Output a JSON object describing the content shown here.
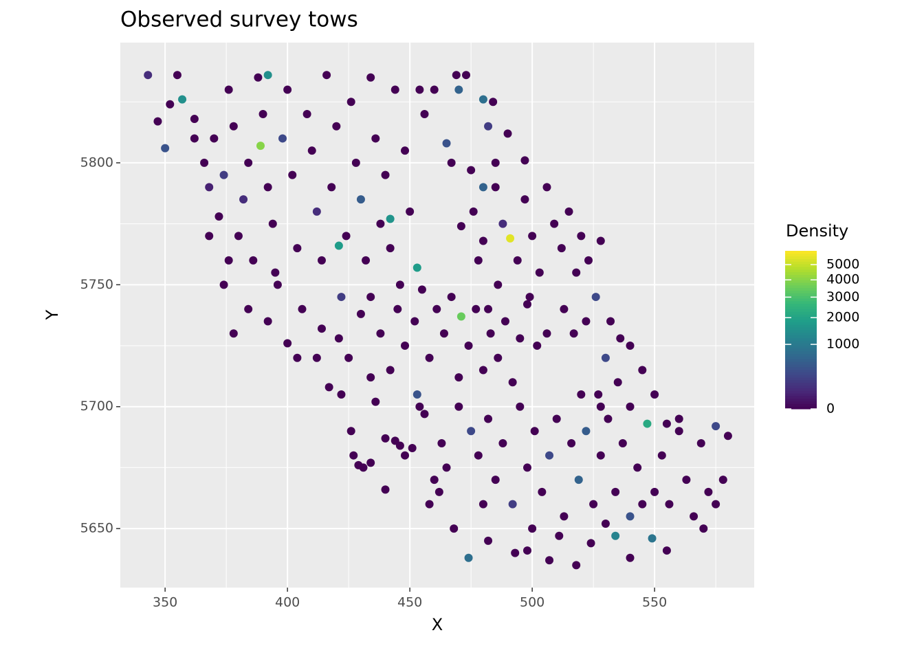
{
  "chart_data": {
    "type": "scatter",
    "title": "Observed survey tows",
    "x_label": "X",
    "y_label": "Y",
    "color_title": "Density",
    "color_scale": "sqrt",
    "color_lim": [
      0,
      6000
    ],
    "color_ticks": [
      0,
      1000,
      2000,
      3000,
      4000,
      5000
    ],
    "xlim": [
      331.7,
      590.7
    ],
    "ylim": [
      5625.8,
      5849.3
    ],
    "xticks": [
      350,
      400,
      450,
      500,
      550
    ],
    "yticks": [
      5650,
      5700,
      5750,
      5800
    ],
    "x_minor_grid": [
      375,
      425,
      475,
      525,
      575
    ],
    "y_minor_grid": [
      5675,
      5725,
      5775,
      5825
    ],
    "grid": true,
    "points": [
      {
        "x": 343,
        "y": 5836,
        "density": 100
      },
      {
        "x": 347,
        "y": 5817,
        "density": 0
      },
      {
        "x": 350,
        "y": 5806,
        "density": 400
      },
      {
        "x": 352,
        "y": 5824,
        "density": 0
      },
      {
        "x": 355,
        "y": 5836,
        "density": 0
      },
      {
        "x": 357,
        "y": 5826,
        "density": 1500
      },
      {
        "x": 362,
        "y": 5818,
        "density": 0
      },
      {
        "x": 366,
        "y": 5800,
        "density": 0
      },
      {
        "x": 368,
        "y": 5790,
        "density": 50
      },
      {
        "x": 370,
        "y": 5810,
        "density": 0
      },
      {
        "x": 372,
        "y": 5778,
        "density": 0
      },
      {
        "x": 374,
        "y": 5795,
        "density": 200
      },
      {
        "x": 376,
        "y": 5830,
        "density": 0
      },
      {
        "x": 378,
        "y": 5815,
        "density": 0
      },
      {
        "x": 380,
        "y": 5770,
        "density": 0
      },
      {
        "x": 382,
        "y": 5785,
        "density": 100
      },
      {
        "x": 384,
        "y": 5800,
        "density": 0
      },
      {
        "x": 386,
        "y": 5760,
        "density": 0
      },
      {
        "x": 388,
        "y": 5835,
        "density": 0
      },
      {
        "x": 392,
        "y": 5836,
        "density": 1500
      },
      {
        "x": 389,
        "y": 5807,
        "density": 4000
      },
      {
        "x": 390,
        "y": 5820,
        "density": 0
      },
      {
        "x": 392,
        "y": 5790,
        "density": 0
      },
      {
        "x": 394,
        "y": 5775,
        "density": 0
      },
      {
        "x": 396,
        "y": 5750,
        "density": 0
      },
      {
        "x": 398,
        "y": 5810,
        "density": 300
      },
      {
        "x": 400,
        "y": 5830,
        "density": 0
      },
      {
        "x": 402,
        "y": 5795,
        "density": 0
      },
      {
        "x": 404,
        "y": 5765,
        "density": 0
      },
      {
        "x": 406,
        "y": 5740,
        "density": 0
      },
      {
        "x": 408,
        "y": 5820,
        "density": 0
      },
      {
        "x": 410,
        "y": 5805,
        "density": 0
      },
      {
        "x": 412,
        "y": 5780,
        "density": 100
      },
      {
        "x": 414,
        "y": 5760,
        "density": 0
      },
      {
        "x": 416,
        "y": 5836,
        "density": 0
      },
      {
        "x": 418,
        "y": 5790,
        "density": 0
      },
      {
        "x": 420,
        "y": 5815,
        "density": 0
      },
      {
        "x": 422,
        "y": 5745,
        "density": 200
      },
      {
        "x": 421,
        "y": 5766,
        "density": 1800
      },
      {
        "x": 424,
        "y": 5770,
        "density": 0
      },
      {
        "x": 426,
        "y": 5825,
        "density": 0
      },
      {
        "x": 428,
        "y": 5800,
        "density": 0
      },
      {
        "x": 430,
        "y": 5785,
        "density": 500
      },
      {
        "x": 432,
        "y": 5760,
        "density": 0
      },
      {
        "x": 434,
        "y": 5835,
        "density": 0
      },
      {
        "x": 436,
        "y": 5810,
        "density": 0
      },
      {
        "x": 438,
        "y": 5775,
        "density": 0
      },
      {
        "x": 440,
        "y": 5795,
        "density": 0
      },
      {
        "x": 442,
        "y": 5777,
        "density": 1600
      },
      {
        "x": 442,
        "y": 5765,
        "density": 0
      },
      {
        "x": 444,
        "y": 5830,
        "density": 0
      },
      {
        "x": 446,
        "y": 5750,
        "density": 0
      },
      {
        "x": 448,
        "y": 5805,
        "density": 0
      },
      {
        "x": 450,
        "y": 5780,
        "density": 0
      },
      {
        "x": 453,
        "y": 5757,
        "density": 1800
      },
      {
        "x": 454,
        "y": 5830,
        "density": 0
      },
      {
        "x": 456,
        "y": 5820,
        "density": 0
      },
      {
        "x": 460,
        "y": 5830,
        "density": 0
      },
      {
        "x": 378,
        "y": 5730,
        "density": 0
      },
      {
        "x": 384,
        "y": 5740,
        "density": 0
      },
      {
        "x": 400,
        "y": 5726,
        "density": 0
      },
      {
        "x": 404,
        "y": 5720,
        "density": 0
      },
      {
        "x": 395,
        "y": 5755,
        "density": 0
      },
      {
        "x": 374,
        "y": 5750,
        "density": 0
      },
      {
        "x": 392,
        "y": 5735,
        "density": 0
      },
      {
        "x": 414,
        "y": 5732,
        "density": 0
      },
      {
        "x": 362,
        "y": 5810,
        "density": 0
      },
      {
        "x": 368,
        "y": 5770,
        "density": 0
      },
      {
        "x": 376,
        "y": 5760,
        "density": 0
      },
      {
        "x": 469,
        "y": 5836,
        "density": 0
      },
      {
        "x": 470,
        "y": 5830,
        "density": 600
      },
      {
        "x": 473,
        "y": 5836,
        "density": 0
      },
      {
        "x": 480,
        "y": 5826,
        "density": 800
      },
      {
        "x": 484,
        "y": 5825,
        "density": 0
      },
      {
        "x": 482,
        "y": 5815,
        "density": 200
      },
      {
        "x": 465,
        "y": 5808,
        "density": 400
      },
      {
        "x": 467,
        "y": 5800,
        "density": 0
      },
      {
        "x": 475,
        "y": 5797,
        "density": 0
      },
      {
        "x": 485,
        "y": 5800,
        "density": 0
      },
      {
        "x": 490,
        "y": 5812,
        "density": 0
      },
      {
        "x": 497,
        "y": 5801,
        "density": 0
      },
      {
        "x": 480,
        "y": 5790,
        "density": 600
      },
      {
        "x": 471,
        "y": 5774,
        "density": 0
      },
      {
        "x": 476,
        "y": 5780,
        "density": 0
      },
      {
        "x": 480,
        "y": 5768,
        "density": 0
      },
      {
        "x": 485,
        "y": 5790,
        "density": 0
      },
      {
        "x": 488,
        "y": 5775,
        "density": 100
      },
      {
        "x": 491,
        "y": 5769,
        "density": 5500
      },
      {
        "x": 494,
        "y": 5760,
        "density": 0
      },
      {
        "x": 497,
        "y": 5785,
        "density": 0
      },
      {
        "x": 500,
        "y": 5770,
        "density": 0
      },
      {
        "x": 503,
        "y": 5755,
        "density": 0
      },
      {
        "x": 506,
        "y": 5790,
        "density": 0
      },
      {
        "x": 509,
        "y": 5775,
        "density": 0
      },
      {
        "x": 512,
        "y": 5765,
        "density": 0
      },
      {
        "x": 515,
        "y": 5780,
        "density": 0
      },
      {
        "x": 518,
        "y": 5755,
        "density": 0
      },
      {
        "x": 520,
        "y": 5770,
        "density": 0
      },
      {
        "x": 523,
        "y": 5760,
        "density": 0
      },
      {
        "x": 526,
        "y": 5745,
        "density": 300
      },
      {
        "x": 528,
        "y": 5768,
        "density": 0
      },
      {
        "x": 513,
        "y": 5740,
        "density": 0
      },
      {
        "x": 517,
        "y": 5730,
        "density": 0
      },
      {
        "x": 522,
        "y": 5735,
        "density": 0
      },
      {
        "x": 499,
        "y": 5745,
        "density": 0
      },
      {
        "x": 486,
        "y": 5750,
        "density": 0
      },
      {
        "x": 482,
        "y": 5740,
        "density": 0
      },
      {
        "x": 478,
        "y": 5760,
        "density": 0
      },
      {
        "x": 421,
        "y": 5728,
        "density": 0
      },
      {
        "x": 425,
        "y": 5720,
        "density": 0
      },
      {
        "x": 430,
        "y": 5738,
        "density": 0
      },
      {
        "x": 434,
        "y": 5745,
        "density": 0
      },
      {
        "x": 438,
        "y": 5730,
        "density": 0
      },
      {
        "x": 442,
        "y": 5715,
        "density": 0
      },
      {
        "x": 445,
        "y": 5740,
        "density": 0
      },
      {
        "x": 448,
        "y": 5725,
        "density": 0
      },
      {
        "x": 452,
        "y": 5735,
        "density": 0
      },
      {
        "x": 455,
        "y": 5748,
        "density": 0
      },
      {
        "x": 458,
        "y": 5720,
        "density": 0
      },
      {
        "x": 461,
        "y": 5740,
        "density": 0
      },
      {
        "x": 464,
        "y": 5730,
        "density": 0
      },
      {
        "x": 467,
        "y": 5745,
        "density": 0
      },
      {
        "x": 471,
        "y": 5737,
        "density": 3500
      },
      {
        "x": 474,
        "y": 5725,
        "density": 0
      },
      {
        "x": 477,
        "y": 5740,
        "density": 0
      },
      {
        "x": 480,
        "y": 5715,
        "density": 0
      },
      {
        "x": 483,
        "y": 5730,
        "density": 0
      },
      {
        "x": 486,
        "y": 5720,
        "density": 0
      },
      {
        "x": 489,
        "y": 5735,
        "density": 0
      },
      {
        "x": 492,
        "y": 5710,
        "density": 0
      },
      {
        "x": 495,
        "y": 5728,
        "density": 0
      },
      {
        "x": 498,
        "y": 5742,
        "density": 0
      },
      {
        "x": 502,
        "y": 5725,
        "density": 0
      },
      {
        "x": 506,
        "y": 5730,
        "density": 0
      },
      {
        "x": 417,
        "y": 5708,
        "density": 0
      },
      {
        "x": 422,
        "y": 5705,
        "density": 0
      },
      {
        "x": 436,
        "y": 5702,
        "density": 0
      },
      {
        "x": 470,
        "y": 5712,
        "density": 0
      },
      {
        "x": 412,
        "y": 5720,
        "density": 0
      },
      {
        "x": 434,
        "y": 5712,
        "density": 0
      },
      {
        "x": 426,
        "y": 5690,
        "density": 0
      },
      {
        "x": 427,
        "y": 5680,
        "density": 0
      },
      {
        "x": 429,
        "y": 5676,
        "density": 0
      },
      {
        "x": 431,
        "y": 5675,
        "density": 0
      },
      {
        "x": 434,
        "y": 5677,
        "density": 0
      },
      {
        "x": 440,
        "y": 5687,
        "density": 0
      },
      {
        "x": 444,
        "y": 5686,
        "density": 0
      },
      {
        "x": 446,
        "y": 5684,
        "density": 0
      },
      {
        "x": 448,
        "y": 5680,
        "density": 0
      },
      {
        "x": 451,
        "y": 5683,
        "density": 0
      },
      {
        "x": 453,
        "y": 5705,
        "density": 400
      },
      {
        "x": 454,
        "y": 5700,
        "density": 0
      },
      {
        "x": 456,
        "y": 5697,
        "density": 0
      },
      {
        "x": 460,
        "y": 5670,
        "density": 0
      },
      {
        "x": 462,
        "y": 5665,
        "density": 0
      },
      {
        "x": 465,
        "y": 5675,
        "density": 0
      },
      {
        "x": 458,
        "y": 5660,
        "density": 0
      },
      {
        "x": 463,
        "y": 5685,
        "density": 0
      },
      {
        "x": 440,
        "y": 5666,
        "density": 0
      },
      {
        "x": 470,
        "y": 5700,
        "density": 0
      },
      {
        "x": 475,
        "y": 5690,
        "density": 300
      },
      {
        "x": 478,
        "y": 5680,
        "density": 0
      },
      {
        "x": 482,
        "y": 5695,
        "density": 0
      },
      {
        "x": 485,
        "y": 5670,
        "density": 0
      },
      {
        "x": 488,
        "y": 5685,
        "density": 0
      },
      {
        "x": 492,
        "y": 5660,
        "density": 200
      },
      {
        "x": 495,
        "y": 5700,
        "density": 0
      },
      {
        "x": 498,
        "y": 5675,
        "density": 0
      },
      {
        "x": 501,
        "y": 5690,
        "density": 0
      },
      {
        "x": 504,
        "y": 5665,
        "density": 0
      },
      {
        "x": 507,
        "y": 5680,
        "density": 300
      },
      {
        "x": 510,
        "y": 5695,
        "density": 0
      },
      {
        "x": 513,
        "y": 5655,
        "density": 0
      },
      {
        "x": 516,
        "y": 5685,
        "density": 0
      },
      {
        "x": 519,
        "y": 5670,
        "density": 600
      },
      {
        "x": 522,
        "y": 5690,
        "density": 500
      },
      {
        "x": 525,
        "y": 5660,
        "density": 0
      },
      {
        "x": 528,
        "y": 5680,
        "density": 0
      },
      {
        "x": 531,
        "y": 5695,
        "density": 0
      },
      {
        "x": 534,
        "y": 5665,
        "density": 0
      },
      {
        "x": 537,
        "y": 5685,
        "density": 0
      },
      {
        "x": 540,
        "y": 5655,
        "density": 400
      },
      {
        "x": 543,
        "y": 5675,
        "density": 0
      },
      {
        "x": 547,
        "y": 5693,
        "density": 2200
      },
      {
        "x": 550,
        "y": 5665,
        "density": 0
      },
      {
        "x": 553,
        "y": 5680,
        "density": 0
      },
      {
        "x": 556,
        "y": 5660,
        "density": 0
      },
      {
        "x": 560,
        "y": 5690,
        "density": 0
      },
      {
        "x": 563,
        "y": 5670,
        "density": 0
      },
      {
        "x": 566,
        "y": 5655,
        "density": 0
      },
      {
        "x": 569,
        "y": 5685,
        "density": 0
      },
      {
        "x": 572,
        "y": 5665,
        "density": 0
      },
      {
        "x": 575,
        "y": 5660,
        "density": 0
      },
      {
        "x": 578,
        "y": 5670,
        "density": 0
      },
      {
        "x": 580,
        "y": 5688,
        "density": 0
      },
      {
        "x": 575,
        "y": 5692,
        "density": 300
      },
      {
        "x": 570,
        "y": 5650,
        "density": 0
      },
      {
        "x": 474,
        "y": 5638,
        "density": 800
      },
      {
        "x": 482,
        "y": 5645,
        "density": 0
      },
      {
        "x": 493,
        "y": 5640,
        "density": 0
      },
      {
        "x": 498,
        "y": 5641,
        "density": 0
      },
      {
        "x": 507,
        "y": 5637,
        "density": 0
      },
      {
        "x": 518,
        "y": 5635,
        "density": 0
      },
      {
        "x": 524,
        "y": 5644,
        "density": 0
      },
      {
        "x": 534,
        "y": 5647,
        "density": 1200
      },
      {
        "x": 540,
        "y": 5638,
        "density": 0
      },
      {
        "x": 549,
        "y": 5646,
        "density": 900
      },
      {
        "x": 555,
        "y": 5641,
        "density": 0
      },
      {
        "x": 468,
        "y": 5650,
        "density": 0
      },
      {
        "x": 480,
        "y": 5660,
        "density": 0
      },
      {
        "x": 500,
        "y": 5650,
        "density": 0
      },
      {
        "x": 511,
        "y": 5647,
        "density": 0
      },
      {
        "x": 530,
        "y": 5652,
        "density": 0
      },
      {
        "x": 545,
        "y": 5660,
        "density": 0
      },
      {
        "x": 527,
        "y": 5705,
        "density": 0
      },
      {
        "x": 530,
        "y": 5720,
        "density": 300
      },
      {
        "x": 535,
        "y": 5710,
        "density": 0
      },
      {
        "x": 540,
        "y": 5700,
        "density": 0
      },
      {
        "x": 545,
        "y": 5715,
        "density": 0
      },
      {
        "x": 550,
        "y": 5705,
        "density": 0
      },
      {
        "x": 540,
        "y": 5725,
        "density": 0
      },
      {
        "x": 532,
        "y": 5735,
        "density": 0
      },
      {
        "x": 536,
        "y": 5728,
        "density": 0
      },
      {
        "x": 528,
        "y": 5700,
        "density": 0
      },
      {
        "x": 520,
        "y": 5705,
        "density": 0
      },
      {
        "x": 555,
        "y": 5693,
        "density": 0
      },
      {
        "x": 560,
        "y": 5695,
        "density": 0
      }
    ]
  }
}
